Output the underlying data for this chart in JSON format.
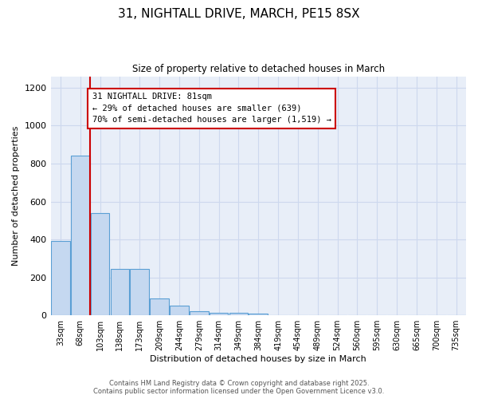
{
  "title_line1": "31, NIGHTALL DRIVE, MARCH, PE15 8SX",
  "title_line2": "Size of property relative to detached houses in March",
  "xlabel": "Distribution of detached houses by size in March",
  "ylabel": "Number of detached properties",
  "bar_labels": [
    "33sqm",
    "68sqm",
    "103sqm",
    "138sqm",
    "173sqm",
    "209sqm",
    "244sqm",
    "279sqm",
    "314sqm",
    "349sqm",
    "384sqm",
    "419sqm",
    "454sqm",
    "489sqm",
    "524sqm",
    "560sqm",
    "595sqm",
    "630sqm",
    "665sqm",
    "700sqm",
    "735sqm"
  ],
  "bar_values": [
    390,
    840,
    540,
    245,
    245,
    90,
    53,
    20,
    15,
    12,
    8,
    0,
    0,
    0,
    0,
    0,
    0,
    0,
    0,
    0,
    0
  ],
  "bar_color": "#c5d8f0",
  "bar_edge_color": "#5a9fd4",
  "vline_x": 1.5,
  "vline_color": "#cc0000",
  "annotation_text": "31 NIGHTALL DRIVE: 81sqm\n← 29% of detached houses are smaller (639)\n70% of semi-detached houses are larger (1,519) →",
  "annotation_box_color": "#cc0000",
  "ylim": [
    0,
    1260
  ],
  "yticks": [
    0,
    200,
    400,
    600,
    800,
    1000,
    1200
  ],
  "bg_color": "#e8eef8",
  "grid_color": "#cdd8ee",
  "footer_line1": "Contains HM Land Registry data © Crown copyright and database right 2025.",
  "footer_line2": "Contains public sector information licensed under the Open Government Licence v3.0."
}
